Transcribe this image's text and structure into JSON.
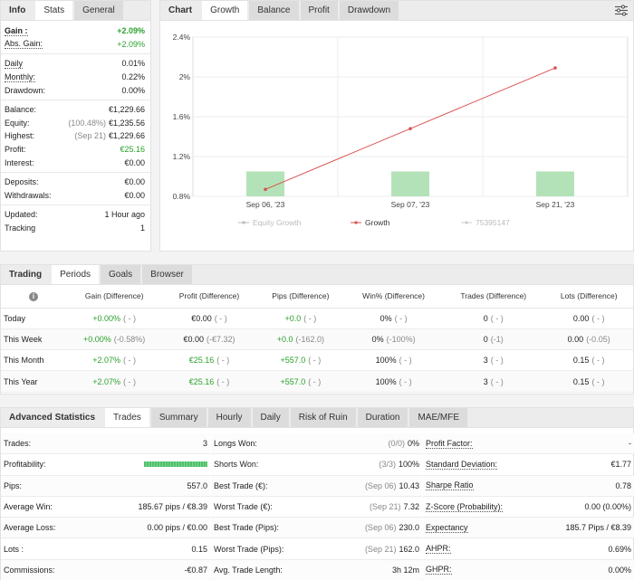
{
  "left_tabs": [
    "Info",
    "Stats",
    "General"
  ],
  "stats": [
    {
      "label": "Gain :",
      "value": "+2.09%",
      "note": "",
      "green": true,
      "bold": true,
      "dotted": true
    },
    {
      "label": "Abs. Gain:",
      "value": "+2.09%",
      "note": "",
      "green": true,
      "bold": false,
      "dotted": true
    },
    {
      "sep": true
    },
    {
      "label": "Daily",
      "value": "0.01%",
      "note": "",
      "dotted": true
    },
    {
      "label": "Monthly:",
      "value": "0.22%",
      "note": "",
      "dotted": true
    },
    {
      "label": "Drawdown:",
      "value": "0.00%",
      "note": ""
    },
    {
      "sep": true
    },
    {
      "label": "Balance:",
      "value": "€1,229.66",
      "note": ""
    },
    {
      "label": "Equity:",
      "value": "€1,235.56",
      "note": "(100.48%)"
    },
    {
      "label": "Highest:",
      "value": "€1,229.66",
      "note": "(Sep 21)"
    },
    {
      "label": "Profit:",
      "value": "€25.16",
      "note": "",
      "green": true
    },
    {
      "label": "Interest:",
      "value": "€0.00",
      "note": ""
    },
    {
      "sep": true
    },
    {
      "label": "Deposits:",
      "value": "€0.00",
      "note": ""
    },
    {
      "label": "Withdrawals:",
      "value": "€0.00",
      "note": ""
    },
    {
      "sep": true
    },
    {
      "label": "Updated:",
      "value": "1 Hour ago",
      "note": ""
    },
    {
      "label": "Tracking",
      "value": "1",
      "note": ""
    }
  ],
  "chart_tabs": [
    "Chart",
    "Growth",
    "Balance",
    "Profit",
    "Drawdown"
  ],
  "chart_data": {
    "type": "line",
    "categories": [
      "Sep 06, '23",
      "Sep 07, '23",
      "Sep 21, '23"
    ],
    "yticks": [
      "2.4%",
      "2%",
      "1.6%",
      "1.2%",
      "0.8%"
    ],
    "ylim": [
      0.8,
      2.4
    ],
    "series": [
      {
        "name": "Growth",
        "values": [
          0.87,
          1.48,
          2.09
        ]
      }
    ],
    "bars": {
      "name": "75395147",
      "values": [
        1.05,
        1.05,
        1.05
      ]
    },
    "legend": [
      "Equity Growth",
      "Growth",
      "75395147"
    ]
  },
  "period_tabs": [
    "Trading",
    "Periods",
    "Goals",
    "Browser"
  ],
  "period_headers": [
    "Gain (Difference)",
    "Profit (Difference)",
    "Pips (Difference)",
    "Win% (Difference)",
    "Trades (Difference)",
    "Lots (Difference)"
  ],
  "period_rows": [
    {
      "label": "Today",
      "cells": [
        [
          "+0.00%",
          "( - )",
          true
        ],
        [
          "€0.00",
          "( - )",
          false
        ],
        [
          "+0.0",
          "( - )",
          true
        ],
        [
          "0%",
          "( - )",
          false
        ],
        [
          "0",
          "( - )",
          false
        ],
        [
          "0.00",
          "( - )",
          false
        ]
      ]
    },
    {
      "label": "This Week",
      "cells": [
        [
          "+0.00%",
          "(-0.58%)",
          true
        ],
        [
          "€0.00",
          "(-€7.32)",
          false
        ],
        [
          "+0.0",
          "(-162.0)",
          true
        ],
        [
          "0%",
          "(-100%)",
          false
        ],
        [
          "0",
          "(-1)",
          false
        ],
        [
          "0.00",
          "(-0.05)",
          false
        ]
      ]
    },
    {
      "label": "This Month",
      "cells": [
        [
          "+2.07%",
          "( - )",
          true
        ],
        [
          "€25.16",
          "( - )",
          true
        ],
        [
          "+557.0",
          "( - )",
          true
        ],
        [
          "100%",
          "( - )",
          false
        ],
        [
          "3",
          "( - )",
          false
        ],
        [
          "0.15",
          "( - )",
          false
        ]
      ]
    },
    {
      "label": "This Year",
      "cells": [
        [
          "+2.07%",
          "( - )",
          true
        ],
        [
          "€25.16",
          "( - )",
          true
        ],
        [
          "+557.0",
          "( - )",
          true
        ],
        [
          "100%",
          "( - )",
          false
        ],
        [
          "3",
          "( - )",
          false
        ],
        [
          "0.15",
          "( - )",
          false
        ]
      ]
    }
  ],
  "adv_tabs": [
    "Advanced Statistics",
    "Trades",
    "Summary",
    "Hourly",
    "Daily",
    "Risk of Ruin",
    "Duration",
    "MAE/MFE"
  ],
  "adv_col1": [
    {
      "label": "Trades:",
      "value": "3"
    },
    {
      "label": "Profitability:",
      "value": "",
      "bar": true
    },
    {
      "label": "Pips:",
      "value": "557.0"
    },
    {
      "label": "Average Win:",
      "value": "185.67 pips / €8.39"
    },
    {
      "label": "Average Loss:",
      "value": "0.00 pips / €0.00"
    },
    {
      "label": "Lots :",
      "value": "0.15"
    },
    {
      "label": "Commissions:",
      "value": "-€0.87"
    }
  ],
  "adv_col2": [
    {
      "label": "Longs Won:",
      "note": "(0/0)",
      "value": "0%"
    },
    {
      "label": "Shorts Won:",
      "note": "(3/3)",
      "value": "100%"
    },
    {
      "label": "Best Trade (€):",
      "note": "(Sep 06)",
      "value": "10.43"
    },
    {
      "label": "Worst Trade (€):",
      "note": "(Sep 21)",
      "value": "7.32"
    },
    {
      "label": "Best Trade (Pips):",
      "note": "(Sep 06)",
      "value": "230.0"
    },
    {
      "label": "Worst Trade (Pips):",
      "note": "(Sep 21)",
      "value": "162.0"
    },
    {
      "label": "Avg. Trade Length:",
      "note": "",
      "value": "3h 12m"
    }
  ],
  "adv_col3": [
    {
      "label": "Profit Factor:",
      "value": "-"
    },
    {
      "label": "Standard Deviation:",
      "value": "€1.77"
    },
    {
      "label": "Sharpe Ratio",
      "value": "0.78"
    },
    {
      "label": "Z-Score (Probability):",
      "value": "0.00 (0.00%)"
    },
    {
      "label": "Expectancy",
      "value": "185.7 Pips / €8.39"
    },
    {
      "label": "AHPR:",
      "value": "0.69%"
    },
    {
      "label": "GHPR:",
      "value": "0.00%"
    }
  ]
}
